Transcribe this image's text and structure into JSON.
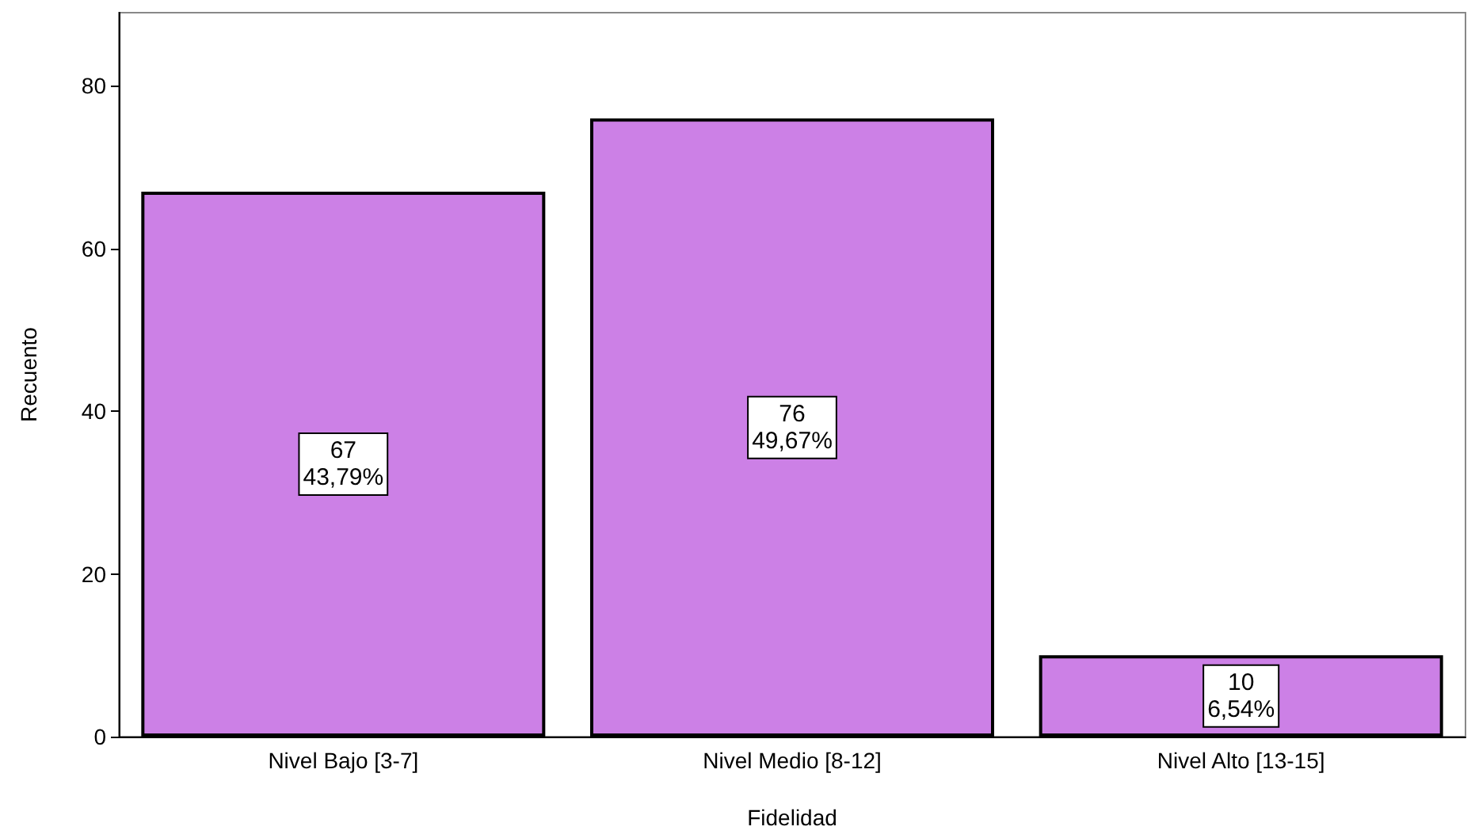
{
  "chart_data": {
    "type": "bar",
    "xlabel": "Fidelidad",
    "ylabel": "Recuento",
    "categories": [
      "Nivel Bajo [3-7]",
      "Nivel Medio [8-12]",
      "Nivel Alto [13-15]"
    ],
    "values": [
      67,
      76,
      10
    ],
    "value_labels": [
      "67\n43,79%",
      "76\n49,67%",
      "10\n6,54%"
    ],
    "color": "#cc80e6",
    "ylim": [
      0,
      89
    ],
    "yticks": [
      0,
      20,
      40,
      60,
      80
    ],
    "grid": false
  }
}
